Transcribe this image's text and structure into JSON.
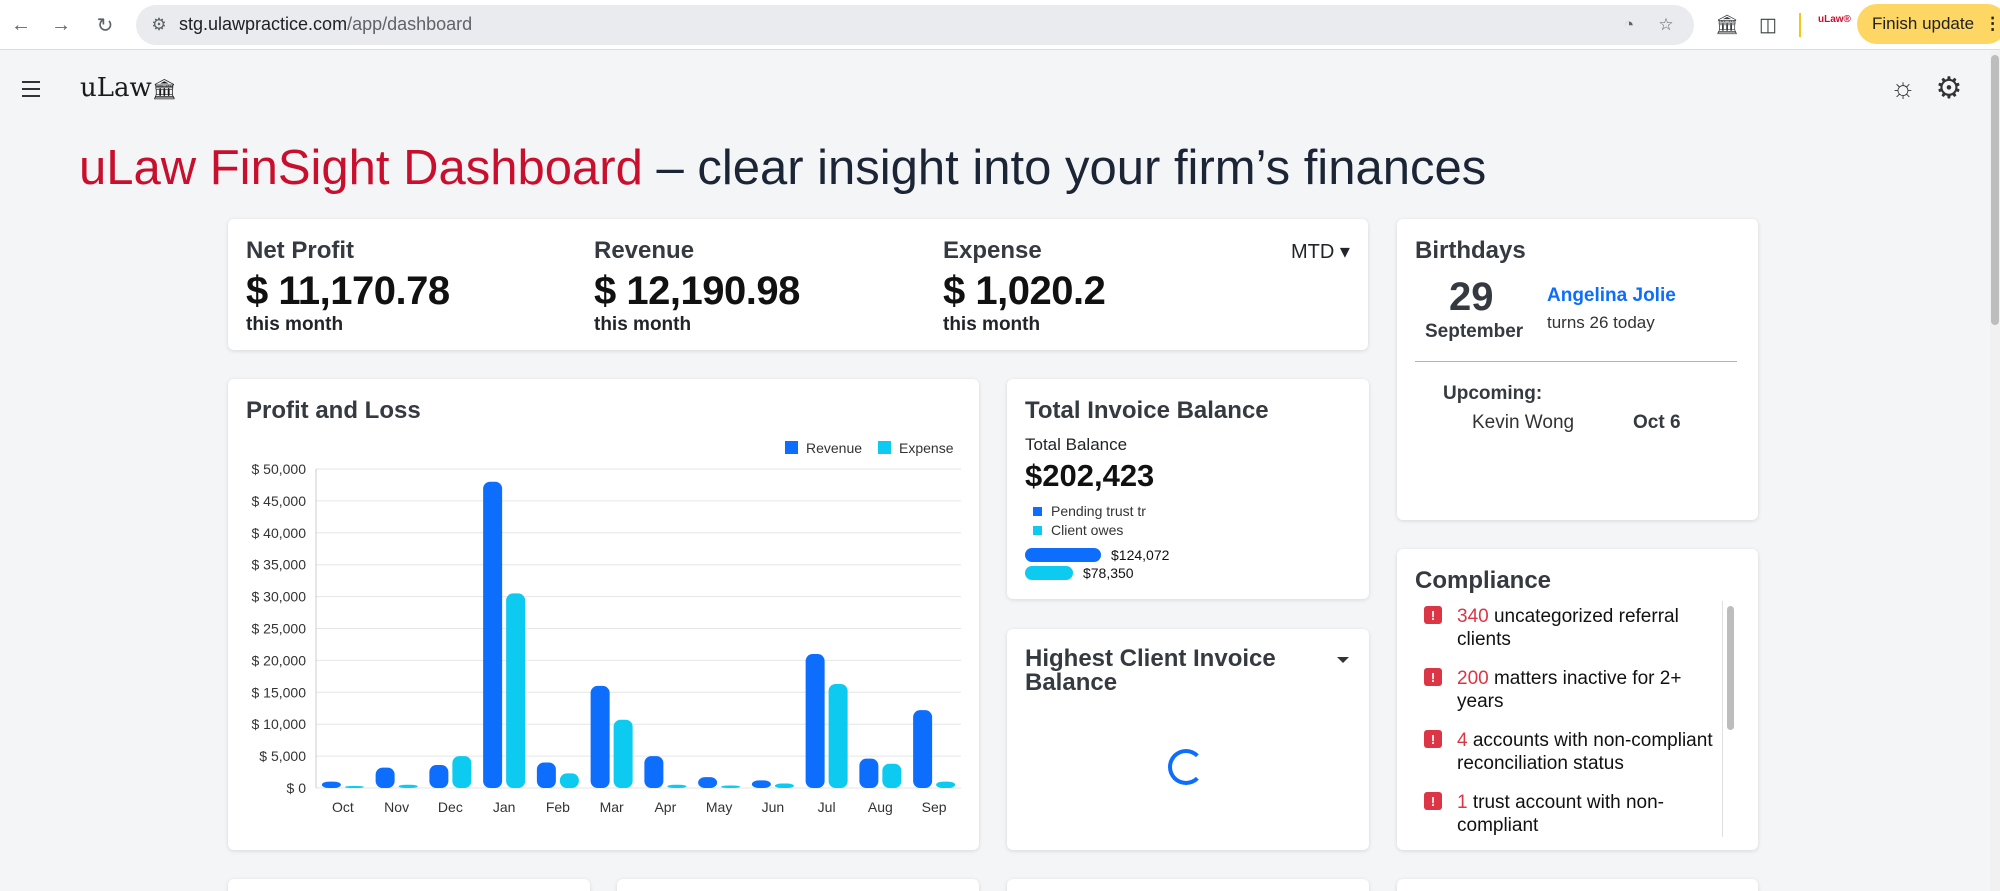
{
  "browser": {
    "url_host": "stg.ulawpractice.com",
    "url_path": "/app/dashboard",
    "profile_label": "uLaw®",
    "update_label": "Finish update"
  },
  "app": {
    "logo_text": "uLaw",
    "headline_brand": "uLaw FinSight Dashboard",
    "headline_rest": " – clear insight into your firm’s finances"
  },
  "summary": {
    "period": "MTD",
    "metrics": [
      {
        "label": "Net Profit",
        "value": "$ 11,170.78",
        "sub": "this month"
      },
      {
        "label": "Revenue",
        "value": "$ 12,190.98",
        "sub": "this month"
      },
      {
        "label": "Expense",
        "value": "$ 1,020.2",
        "sub": "this month"
      }
    ]
  },
  "profit_loss": {
    "title": "Profit and Loss"
  },
  "chart_data": {
    "type": "bar",
    "categories": [
      "Oct",
      "Nov",
      "Dec",
      "Jan",
      "Feb",
      "Mar",
      "Apr",
      "May",
      "Jun",
      "Jul",
      "Aug",
      "Sep"
    ],
    "series": [
      {
        "name": "Revenue",
        "color": "#0d6efd",
        "values": [
          1000,
          3200,
          3600,
          48000,
          4000,
          16000,
          5000,
          1700,
          1200,
          21000,
          4600,
          12200
        ]
      },
      {
        "name": "Expense",
        "color": "#0dcaf0",
        "values": [
          200,
          500,
          5000,
          30500,
          2300,
          10700,
          500,
          400,
          700,
          16300,
          3800,
          1000
        ]
      }
    ],
    "yticks": [
      "$ 0",
      "$ 5,000",
      "$ 10,000",
      "$ 15,000",
      "$ 20,000",
      "$ 25,000",
      "$ 30,000",
      "$ 35,000",
      "$ 40,000",
      "$ 45,000",
      "$ 50,000"
    ],
    "ylim": [
      0,
      50000
    ],
    "grid": true,
    "legend": "top-right",
    "title": "",
    "xlabel": "",
    "ylabel": ""
  },
  "invoice": {
    "title": "Total Invoice Balance",
    "label": "Total Balance",
    "total": "$202,423",
    "legend": [
      {
        "label": "Pending trust tr",
        "color": "#0d6efd"
      },
      {
        "label": "Client owes",
        "color": "#0dcaf0"
      }
    ],
    "bars": [
      {
        "value": 124072,
        "label": "$124,072",
        "color": "#0d6efd"
      },
      {
        "value": 78350,
        "label": "$78,350",
        "color": "#0dcaf0"
      }
    ]
  },
  "highest": {
    "title": "Highest Client Invoice Balance"
  },
  "birthdays": {
    "title": "Birthdays",
    "day": "29",
    "month": "September",
    "name": "Angelina Jolie",
    "turns": "turns 26 today",
    "upcoming_label": "Upcoming:",
    "upcoming": [
      {
        "name": "Kevin Wong",
        "date": "Oct 6"
      }
    ]
  },
  "compliance": {
    "title": "Compliance",
    "items": [
      {
        "num": "340",
        "text": " uncategorized referral clients"
      },
      {
        "num": "200",
        "text": " matters inactive for 2+ years"
      },
      {
        "num": "4",
        "text": " accounts with non-compliant reconciliation status"
      },
      {
        "num": "1",
        "text": " trust account with non-compliant"
      }
    ]
  }
}
